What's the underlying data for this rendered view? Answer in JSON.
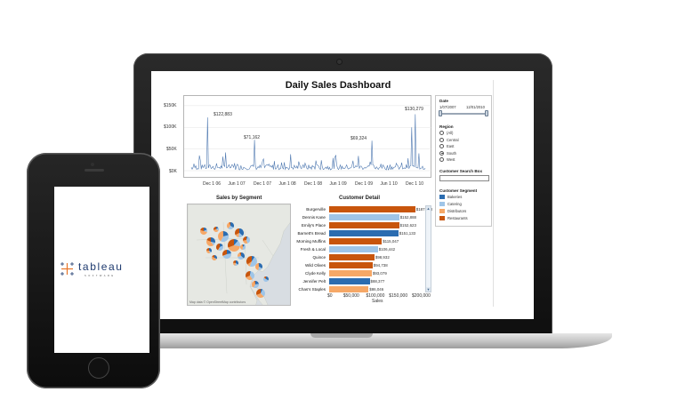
{
  "dashboard": {
    "title": "Daily Sales Dashboard",
    "time_series": {
      "y_ticks": [
        "$150K",
        "$100K",
        "$50K",
        "$0K"
      ],
      "x_ticks": [
        "Dec 1 06",
        "Jun 1 07",
        "Dec 1 07",
        "Jun 1 08",
        "Dec 1 08",
        "Jun 1 09",
        "Dec 1 09",
        "Jun 1 10",
        "Dec 1 10"
      ],
      "annotations": [
        "$122,883",
        "$71,162",
        "$69,324",
        "$130,279"
      ]
    },
    "map": {
      "title": "Sales by Segment",
      "credit": "Map data © OpenStreetMap contributors"
    },
    "customer_detail": {
      "title": "Customer Detail",
      "x_ticks": [
        "$0",
        "$50,000",
        "$100,000",
        "$150,000",
        "$200,000"
      ],
      "x_label": "Sales"
    },
    "filters": {
      "date_label": "Date",
      "date_start": "1/07/2007",
      "date_end": "12/01/2010",
      "region_label": "Region",
      "regions": [
        "(All)",
        "Central",
        "East",
        "South",
        "West"
      ],
      "selected_region": "South",
      "search_label": "Customer Search Box",
      "segment_label": "Customer Segment",
      "segments": [
        {
          "name": "Bakeries",
          "color": "#2b6cb0"
        },
        {
          "name": "Catering",
          "color": "#9fc5e8"
        },
        {
          "name": "Distributors",
          "color": "#f6a867"
        },
        {
          "name": "Restaurants",
          "color": "#c8550c"
        }
      ]
    }
  },
  "phone": {
    "logo_text": "tableau",
    "logo_subtext": "SOFTWARE"
  },
  "chart_data": [
    {
      "type": "bar",
      "title": "Customer Detail",
      "xlabel": "Sales",
      "xlim": [
        0,
        200000
      ],
      "categories": [
        "Burgerville",
        "Dennis Kane",
        "Emily's Place",
        "Barnett's Bread",
        "Morning Muffins",
        "Fresh & Local",
        "Quince",
        "Wild Olives",
        "Clyde Kelly",
        "Jennifer Pelt",
        "Chas's Staples"
      ],
      "values": [
        187938,
        152888,
        152623,
        151133,
        115047,
        106442,
        98932,
        94738,
        93079,
        88377,
        86046
      ],
      "value_labels": [
        "$187,938",
        "$152,888",
        "$152,623",
        "$151,133",
        "$115,047",
        "$106,442",
        "$98,932",
        "$94,738",
        "$93,079",
        "$88,377",
        "$86,046"
      ],
      "segments": [
        "Restaurants",
        "Catering",
        "Restaurants",
        "Bakeries",
        "Restaurants",
        "Catering",
        "Restaurants",
        "Restaurants",
        "Distributors",
        "Bakeries",
        "Distributors"
      ]
    },
    {
      "type": "line",
      "title": "Daily Sales Dashboard",
      "ylim": [
        0,
        160000
      ],
      "highlights": [
        {
          "x": "Feb 2007",
          "y": 122883
        },
        {
          "x": "Dec 2007",
          "y": 71162
        },
        {
          "x": "Feb 2010",
          "y": 69324
        },
        {
          "x": "Nov 2010",
          "y": 130279
        }
      ]
    }
  ]
}
